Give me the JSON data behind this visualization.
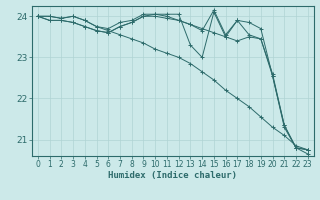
{
  "xlabel": "Humidex (Indice chaleur)",
  "bg_color": "#cce9e9",
  "line_color": "#2d6b6b",
  "grid_major_color": "#b0d4d4",
  "grid_minor_color": "#c5e0e0",
  "xlim": [
    -0.5,
    23.5
  ],
  "ylim": [
    20.6,
    24.25
  ],
  "yticks": [
    21,
    22,
    23,
    24
  ],
  "xticks": [
    0,
    1,
    2,
    3,
    4,
    5,
    6,
    7,
    8,
    9,
    10,
    11,
    12,
    13,
    14,
    15,
    16,
    17,
    18,
    19,
    20,
    21,
    22,
    23
  ],
  "lines": [
    {
      "x": [
        0,
        1,
        2,
        3,
        4,
        5,
        6,
        7,
        8,
        9,
        10,
        11,
        12,
        13,
        14,
        15,
        16,
        17,
        18,
        19,
        20,
        21,
        22,
        23
      ],
      "y": [
        24.0,
        23.9,
        23.9,
        23.85,
        23.75,
        23.65,
        23.6,
        23.75,
        23.85,
        24.0,
        24.05,
        24.05,
        24.05,
        23.3,
        23.0,
        24.1,
        23.5,
        23.9,
        23.85,
        23.7,
        22.55,
        21.35,
        20.8,
        20.75
      ]
    },
    {
      "x": [
        0,
        1,
        2,
        3,
        4,
        5,
        6,
        7,
        8,
        9,
        10,
        11,
        12,
        13,
        14,
        15,
        16,
        17,
        18,
        19,
        20,
        21,
        22,
        23
      ],
      "y": [
        24.0,
        23.9,
        23.9,
        23.85,
        23.75,
        23.65,
        23.6,
        23.75,
        23.85,
        24.0,
        24.0,
        23.95,
        23.9,
        23.8,
        23.7,
        23.6,
        23.5,
        23.4,
        23.5,
        23.45,
        22.6,
        21.35,
        20.8,
        20.75
      ]
    },
    {
      "x": [
        0,
        1,
        2,
        3,
        4,
        5,
        6,
        7,
        8,
        9,
        10,
        11,
        12,
        13,
        14,
        15,
        16,
        17,
        18,
        19,
        20,
        21,
        22,
        23
      ],
      "y": [
        24.0,
        24.0,
        23.95,
        24.0,
        23.9,
        23.75,
        23.65,
        23.55,
        23.45,
        23.35,
        23.2,
        23.1,
        23.0,
        22.85,
        22.65,
        22.45,
        22.2,
        22.0,
        21.8,
        21.55,
        21.3,
        21.1,
        20.85,
        20.75
      ]
    },
    {
      "x": [
        0,
        1,
        2,
        3,
        4,
        5,
        6,
        7,
        8,
        9,
        10,
        11,
        12,
        13,
        14,
        15,
        16,
        17,
        18,
        19,
        20,
        21,
        22,
        23
      ],
      "y": [
        24.0,
        24.0,
        23.95,
        24.0,
        23.9,
        23.75,
        23.7,
        23.85,
        23.9,
        24.05,
        24.05,
        24.0,
        23.9,
        23.8,
        23.65,
        24.15,
        23.55,
        23.9,
        23.55,
        23.45,
        22.55,
        21.3,
        20.8,
        20.65
      ]
    }
  ]
}
